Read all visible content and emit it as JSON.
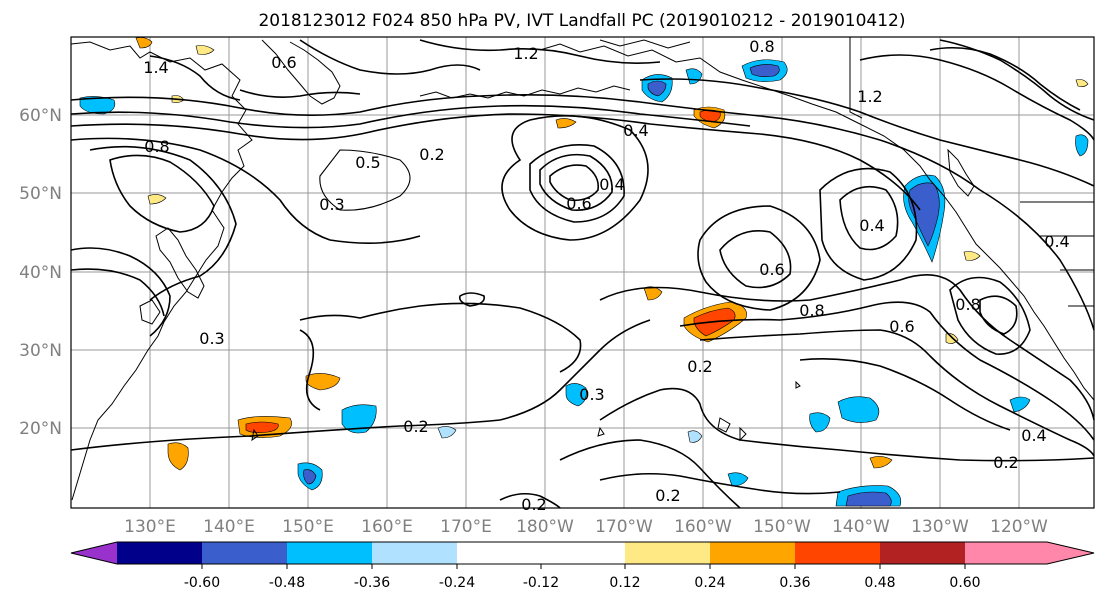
{
  "title": "2018123012 F024 850 hPa PV, IVT Landfall PC (2019010212 - 2019010412)",
  "latitude_labels": [
    "60°N",
    "50°N",
    "40°N",
    "30°N",
    "20°N"
  ],
  "longitude_labels": [
    "130°E",
    "140°E",
    "150°E",
    "160°E",
    "170°E",
    "180°W",
    "170°W",
    "160°W",
    "150°W",
    "140°W",
    "130°W",
    "120°W"
  ],
  "contour_labels": [
    "1.2",
    "0.8",
    "1.4",
    "0.6",
    "0.8",
    "0.2",
    "0.5",
    "0.3",
    "0.6",
    "0.4",
    "0.4",
    "0.3",
    "0.2",
    "0.2",
    "0.3",
    "0.8",
    "0.6",
    "0.4",
    "0.2",
    "0.2",
    "0.4",
    "0.2",
    "1.2",
    "0.4",
    "0.8",
    "0.6"
  ],
  "colorbar": {
    "colors": [
      "#9932cc",
      "#00008b",
      "#3a5fcd",
      "#00bfff",
      "#b0e2ff",
      "#ffffff",
      "#ffe985",
      "#ffa500",
      "#ff4500",
      "#b22222",
      "#ff88aa"
    ],
    "tick_labels": [
      "-0.60",
      "-0.48",
      "-0.36",
      "-0.24",
      "-0.12",
      "0.12",
      "0.24",
      "0.36",
      "0.48",
      "0.60"
    ]
  },
  "shade_colors": {
    "neg_light": "#b0e2ff",
    "neg_mid": "#00bfff",
    "neg_strong": "#3a5fcd",
    "pos_light": "#ffe985",
    "pos_mid": "#ffa500",
    "pos_strong": "#ff4500"
  }
}
